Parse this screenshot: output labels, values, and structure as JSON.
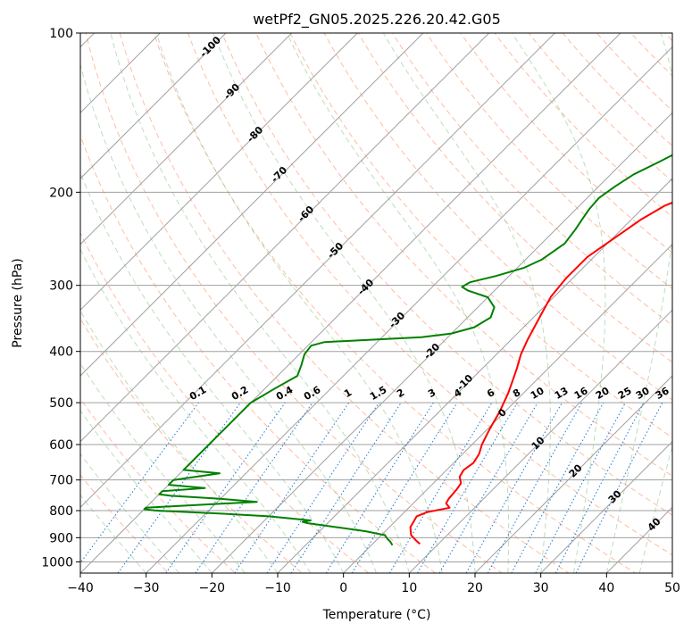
{
  "chart_data": {
    "type": "line",
    "chart_kind": "skew-t log-p",
    "title": "wetPf2_GN05.2025.226.20.42.G05",
    "xlabel": "Temperature (°C)",
    "ylabel": "Pressure (hPa)",
    "xlim": [
      -40,
      50
    ],
    "ylim": [
      1050,
      100
    ],
    "y_scale": "log",
    "grid": true,
    "x_ticks": [
      -40,
      -30,
      -20,
      -10,
      0,
      10,
      20,
      30,
      40,
      50
    ],
    "x_tick_labels": [
      "−40",
      "−30",
      "−20",
      "−10",
      "0",
      "10",
      "20",
      "30",
      "40",
      "50"
    ],
    "y_ticks": [
      1000,
      900,
      800,
      700,
      600,
      500,
      400,
      300,
      200,
      100
    ],
    "y_tick_labels": [
      "1000",
      "900",
      "800",
      "700",
      "600",
      "500",
      "400",
      "300",
      "200",
      "100"
    ],
    "series": [
      {
        "role": "temperature",
        "color": "#ff0000",
        "points": [
          [
            7.2,
            925
          ],
          [
            6,
            910
          ],
          [
            4.5,
            890
          ],
          [
            3.2,
            860
          ],
          [
            2.5,
            820
          ],
          [
            3.5,
            805
          ],
          [
            6.2,
            790
          ],
          [
            5,
            775
          ],
          [
            4.7,
            760
          ],
          [
            4.5,
            730
          ],
          [
            4.2,
            710
          ],
          [
            3,
            690
          ],
          [
            2.6,
            670
          ],
          [
            3,
            650
          ],
          [
            2.5,
            625
          ],
          [
            1.5,
            600
          ],
          [
            0.3,
            560
          ],
          [
            -0.8,
            520
          ],
          [
            -2.3,
            480
          ],
          [
            -3.5,
            455
          ],
          [
            -4.8,
            430
          ],
          [
            -6.3,
            405
          ],
          [
            -7.5,
            380
          ],
          [
            -9.3,
            340
          ],
          [
            -10.5,
            315
          ],
          [
            -11,
            290
          ],
          [
            -11,
            265
          ],
          [
            -9.5,
            240
          ],
          [
            -8.5,
            225
          ],
          [
            -7,
            212
          ],
          [
            -4,
            200
          ],
          [
            -1,
            190
          ],
          [
            2,
            178
          ],
          [
            5.5,
            165
          ],
          [
            8.5,
            155
          ],
          [
            11,
            148
          ],
          [
            13.5,
            142
          ],
          [
            16.5,
            136
          ],
          [
            17.5,
            133
          ],
          [
            20,
            125
          ],
          [
            22.5,
            118
          ],
          [
            25,
            113
          ],
          [
            26,
            110
          ],
          [
            27.8,
            104
          ],
          [
            29,
            100
          ]
        ]
      },
      {
        "role": "dewpoint",
        "color": "#008000",
        "points": [
          [
            3.2,
            930
          ],
          [
            2.3,
            915
          ],
          [
            1.5,
            905
          ],
          [
            0.5,
            890
          ],
          [
            -3,
            875
          ],
          [
            -8,
            860
          ],
          [
            -13,
            845
          ],
          [
            -14,
            840
          ],
          [
            -13,
            835
          ],
          [
            -20,
            820
          ],
          [
            -28,
            810
          ],
          [
            -38,
            800
          ],
          [
            -40,
            795
          ],
          [
            -40,
            790
          ],
          [
            -24,
            770
          ],
          [
            -30,
            760
          ],
          [
            -38,
            750
          ],
          [
            -40,
            745
          ],
          [
            -40,
            735
          ],
          [
            -34,
            725
          ],
          [
            -40,
            715
          ],
          [
            -40,
            700
          ],
          [
            -34,
            680
          ],
          [
            -40,
            670
          ],
          [
            -40,
            500
          ],
          [
            -38.5,
            470
          ],
          [
            -37,
            445
          ],
          [
            -38,
            425
          ],
          [
            -39.2,
            405
          ],
          [
            -39.5,
            390
          ],
          [
            -38,
            384
          ],
          [
            -31,
            380
          ],
          [
            -24,
            376
          ],
          [
            -20,
            370
          ],
          [
            -17.5,
            360
          ],
          [
            -16.5,
            345
          ],
          [
            -17.5,
            330
          ],
          [
            -20,
            316
          ],
          [
            -24,
            307
          ],
          [
            -25.5,
            302
          ],
          [
            -25,
            296
          ],
          [
            -22,
            288
          ],
          [
            -19,
            278
          ],
          [
            -17.5,
            268
          ],
          [
            -16.5,
            250
          ],
          [
            -17,
            235
          ],
          [
            -17.5,
            225
          ],
          [
            -18,
            215
          ],
          [
            -18.2,
            205
          ],
          [
            -17.5,
            195
          ],
          [
            -16.5,
            185
          ],
          [
            -14.5,
            175
          ],
          [
            -12.5,
            165
          ],
          [
            -11.5,
            155
          ],
          [
            -10,
            148
          ],
          [
            -8.5,
            140
          ],
          [
            -6,
            132
          ],
          [
            -4.5,
            125
          ],
          [
            -3,
            120
          ],
          [
            -1,
            112
          ],
          [
            0.5,
            106
          ],
          [
            1.5,
            102
          ],
          [
            2,
            100
          ]
        ]
      }
    ],
    "dry_adiabat_labels": [
      "-100",
      "-90",
      "-80",
      "-70",
      "-60",
      "-50",
      "-40",
      "-30",
      "-20",
      "-10"
    ],
    "mixing_ratio_labels": [
      "0.1",
      "0.2",
      "0.4",
      "0.6",
      "1",
      "1.5",
      "2",
      "3",
      "4",
      "6",
      "8",
      "10",
      "13",
      "16",
      "20",
      "25",
      "30",
      "36"
    ],
    "moist_adiabat_labels": [
      "0",
      "10",
      "20",
      "30",
      "40"
    ],
    "colors": {
      "temperature": "#ff0000",
      "dewpoint": "#008000",
      "isotherm": "#a0a0a0",
      "dry_adiabat": "#ffa07a",
      "moist_adiabat": "#90c890",
      "mixing_ratio": "#1e78d2",
      "dry_adiabat_label": "#1f6fb0",
      "moist_adiabat_label": "#d62728",
      "zero_label": "#808080"
    }
  }
}
